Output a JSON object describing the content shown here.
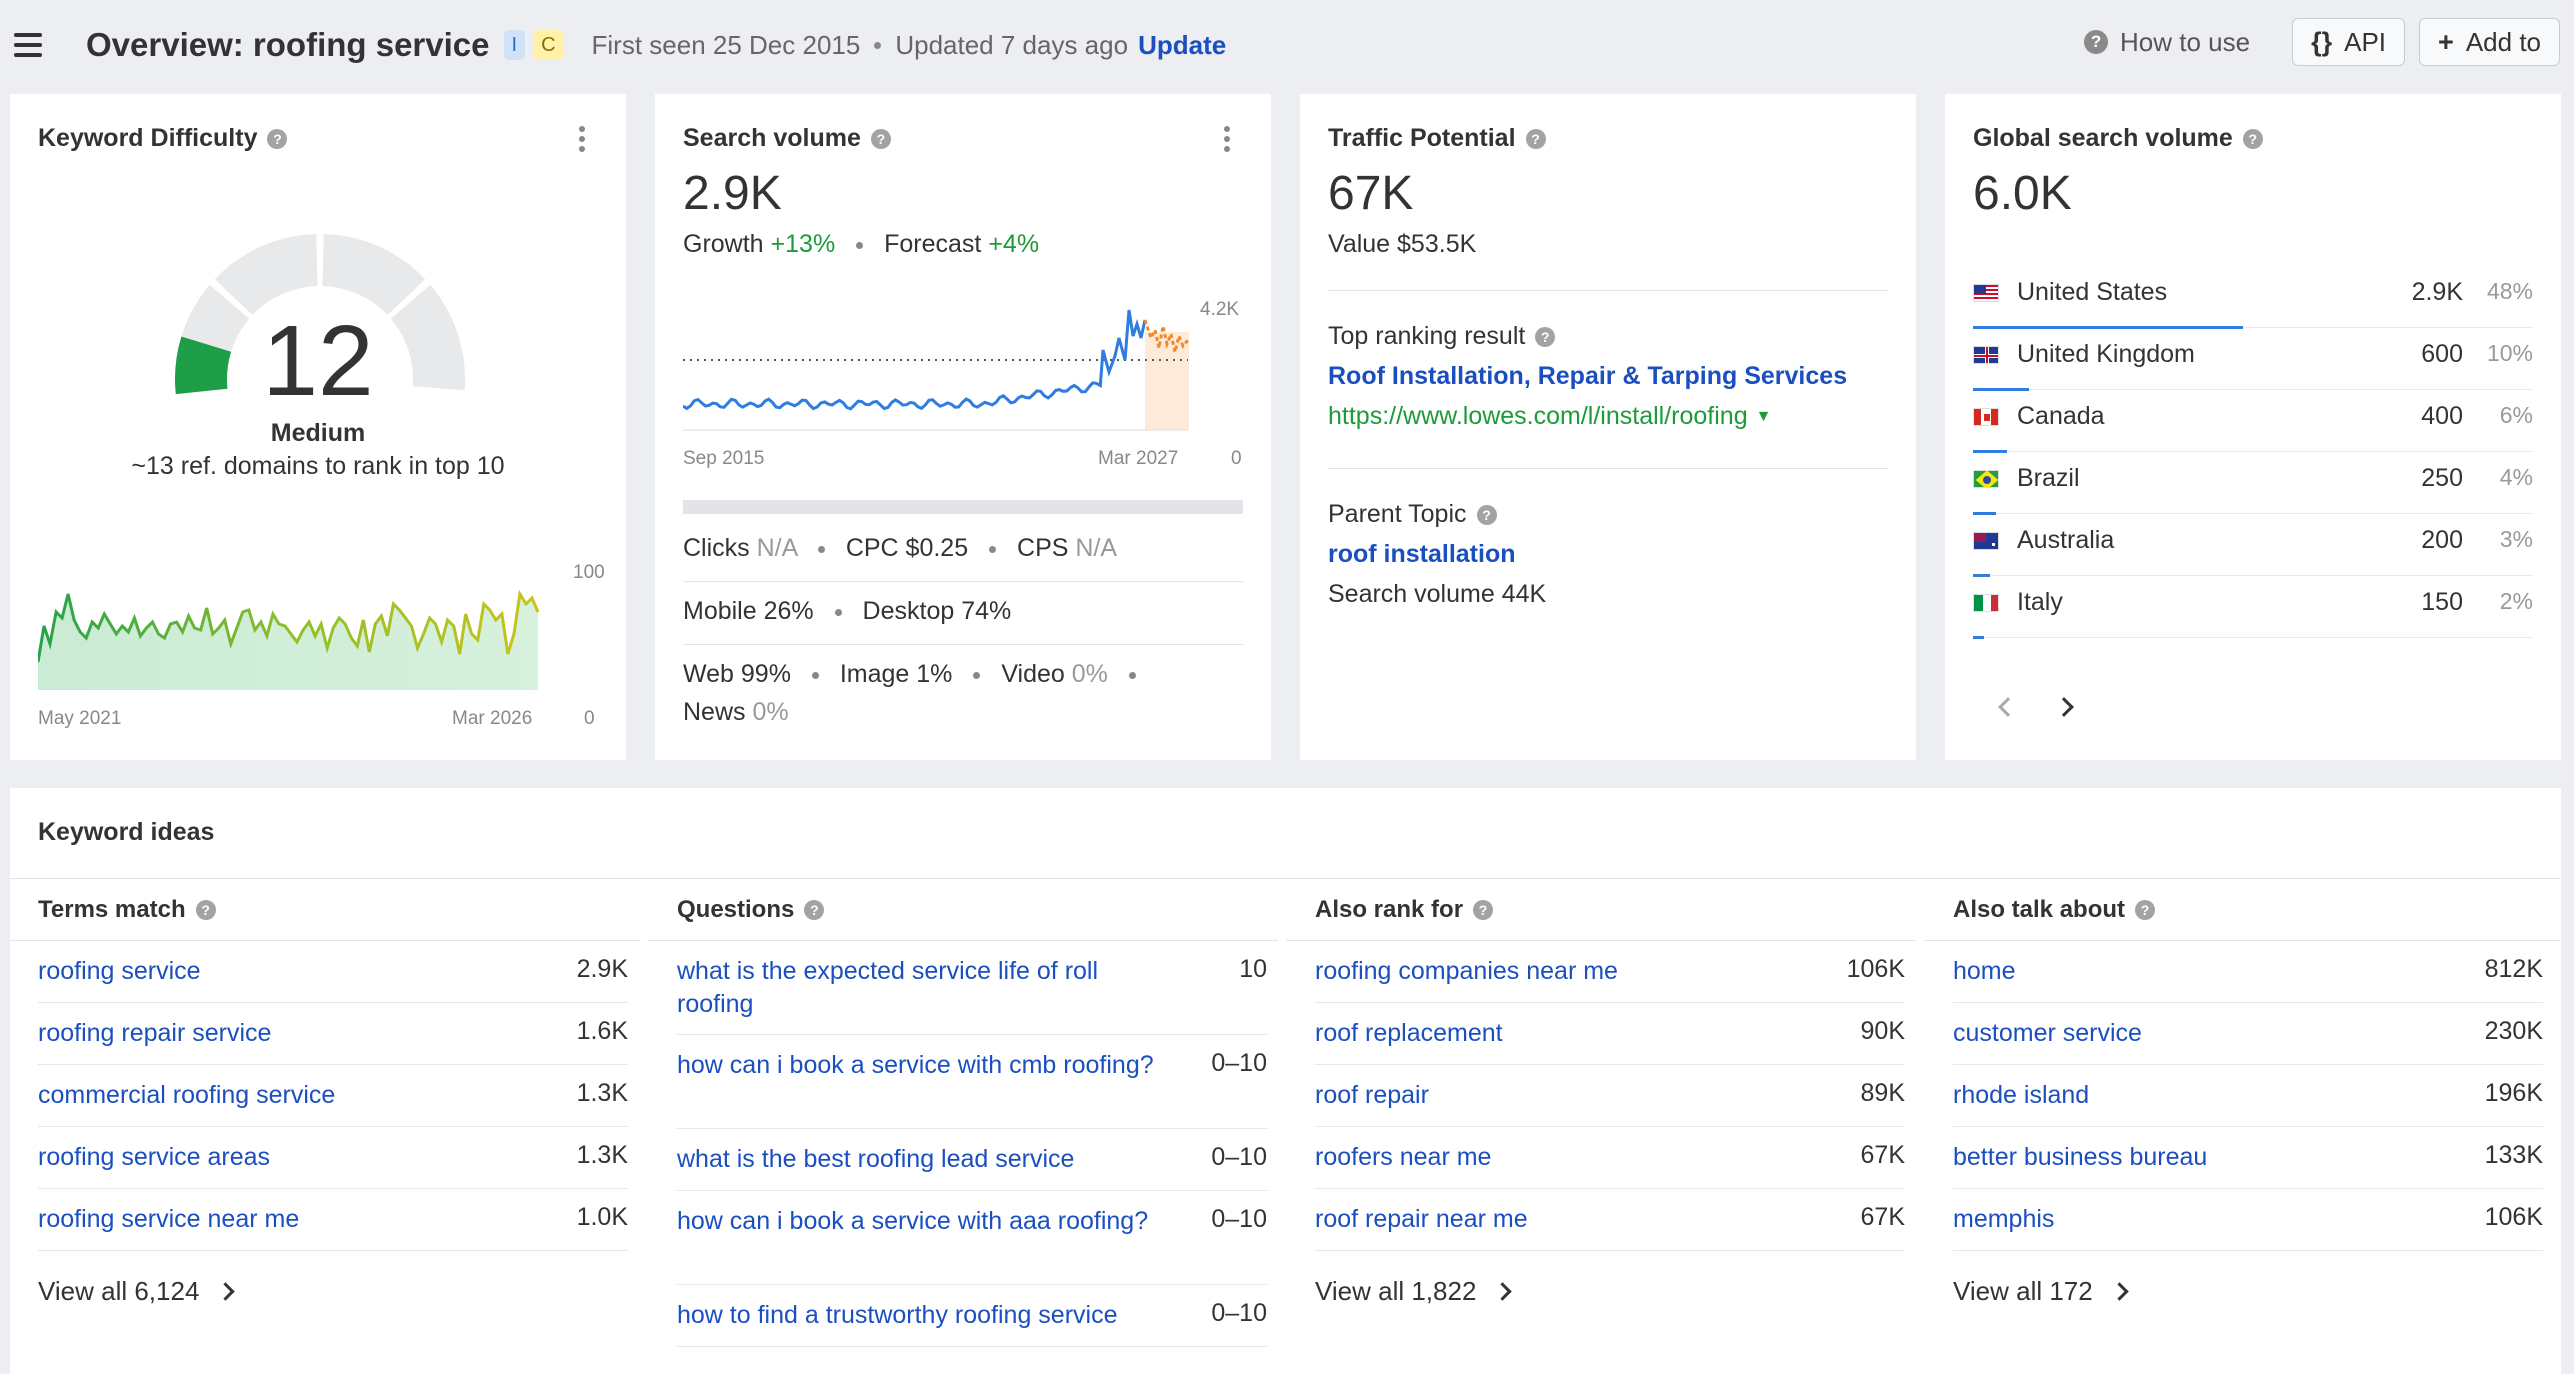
{
  "header": {
    "title": "Overview: roofing service",
    "badges": [
      "I",
      "C"
    ],
    "first_seen": "First seen 25 Dec 2015",
    "updated": "Updated 7 days ago",
    "update_link": "Update",
    "how_to_use": "How to use",
    "api_label": "API",
    "add_to_label": "Add to"
  },
  "kd": {
    "title": "Keyword Difficulty",
    "value": "12",
    "level": "Medium",
    "note": "~13 ref. domains to rank in top 10",
    "score_fraction": 0.12,
    "accent": "#1e9e47",
    "chart": {
      "ymax_label": "100",
      "ymin_label": "0",
      "x_start": "May 2021",
      "x_end": "Mar 2026"
    }
  },
  "sv": {
    "title": "Search volume",
    "value": "2.9K",
    "growth_label": "Growth",
    "growth_value": "+13%",
    "forecast_label": "Forecast",
    "forecast_value": "+4%",
    "chart": {
      "ymax_label": "4.2K",
      "ymin_label": "0",
      "x_start": "Sep 2015",
      "x_end": "Mar 2027"
    },
    "clicks_label": "Clicks",
    "clicks_value": "N/A",
    "cpc_label": "CPC $0.25",
    "cps_label": "CPS",
    "cps_value": "N/A",
    "mobile": "Mobile 26%",
    "desktop": "Desktop 74%",
    "web": "Web 99%",
    "image": "Image 1%",
    "video_label": "Video",
    "video_value": "0%",
    "news_label": "News",
    "news_value": "0%"
  },
  "tp": {
    "title": "Traffic Potential",
    "value": "67K",
    "value_line": "Value $53.5K",
    "top_result_label": "Top ranking result",
    "top_result_title": "Roof Installation, Repair & Tarping Services",
    "top_result_url": "https://www.lowes.com/l/install/roofing",
    "parent_label": "Parent Topic",
    "parent_link": "roof installation",
    "parent_volume": "Search volume 44K"
  },
  "gsv": {
    "title": "Global search volume",
    "value": "6.0K",
    "countries": [
      {
        "name": "United States",
        "value": "2.9K",
        "pct": "48%",
        "share": 0.48
      },
      {
        "name": "United Kingdom",
        "value": "600",
        "pct": "10%",
        "share": 0.1
      },
      {
        "name": "Canada",
        "value": "400",
        "pct": "6%",
        "share": 0.06
      },
      {
        "name": "Brazil",
        "value": "250",
        "pct": "4%",
        "share": 0.04
      },
      {
        "name": "Australia",
        "value": "200",
        "pct": "3%",
        "share": 0.03
      },
      {
        "name": "Italy",
        "value": "150",
        "pct": "2%",
        "share": 0.02
      }
    ]
  },
  "ideas": {
    "title": "Keyword ideas",
    "terms_match": {
      "title": "Terms match",
      "rows": [
        {
          "kw": "roofing service",
          "v": "2.9K"
        },
        {
          "kw": "roofing repair service",
          "v": "1.6K"
        },
        {
          "kw": "commercial roofing service",
          "v": "1.3K"
        },
        {
          "kw": "roofing service areas",
          "v": "1.3K"
        },
        {
          "kw": "roofing service near me",
          "v": "1.0K"
        }
      ],
      "view_all": "View all 6,124"
    },
    "questions": {
      "title": "Questions",
      "rows": [
        {
          "kw": "what is the expected service life of roll roofing",
          "v": "10"
        },
        {
          "kw": "how can i book a service with cmb roofing?",
          "v": "0–10"
        },
        {
          "kw": "what is the best roofing lead service",
          "v": "0–10"
        },
        {
          "kw": "how can i book a service with aaa roofing?",
          "v": "0–10"
        },
        {
          "kw": "how to find a trustworthy roofing service",
          "v": "0–10"
        }
      ]
    },
    "also_rank": {
      "title": "Also rank for",
      "rows": [
        {
          "kw": "roofing companies near me",
          "v": "106K"
        },
        {
          "kw": "roof replacement",
          "v": "90K"
        },
        {
          "kw": "roof repair",
          "v": "89K"
        },
        {
          "kw": "roofers near me",
          "v": "67K"
        },
        {
          "kw": "roof repair near me",
          "v": "67K"
        }
      ],
      "view_all": "View all 1,822"
    },
    "also_talk": {
      "title": "Also talk about",
      "rows": [
        {
          "kw": "home",
          "v": "812K"
        },
        {
          "kw": "customer service",
          "v": "230K"
        },
        {
          "kw": "rhode island",
          "v": "196K"
        },
        {
          "kw": "better business bureau",
          "v": "133K"
        },
        {
          "kw": "memphis",
          "v": "106K"
        }
      ],
      "view_all": "View all 172"
    }
  }
}
